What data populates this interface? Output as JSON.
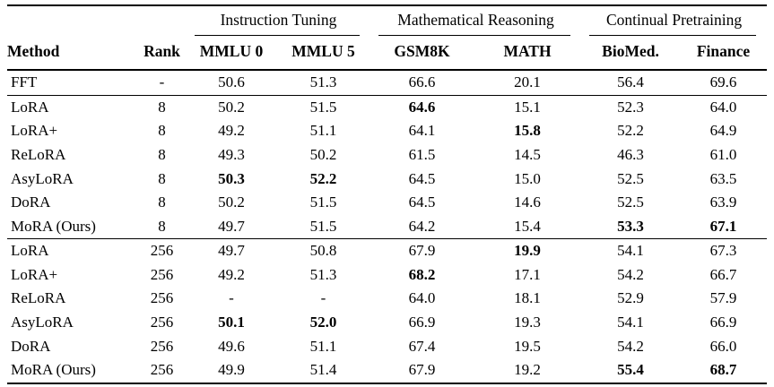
{
  "table": {
    "column_groups": [
      {
        "label": "Instruction Tuning"
      },
      {
        "label": "Mathematical Reasoning"
      },
      {
        "label": "Continual Pretraining"
      }
    ],
    "columns": [
      "Method",
      "Rank",
      "MMLU 0",
      "MMLU 5",
      "GSM8K",
      "MATH",
      "BioMed.",
      "Finance"
    ],
    "rows": [
      {
        "method": "FFT",
        "rank": "-",
        "section": "fft",
        "values": [
          "50.6",
          "51.3",
          "66.6",
          "20.1",
          "56.4",
          "69.6"
        ],
        "bold": [
          false,
          false,
          false,
          false,
          false,
          false
        ]
      },
      {
        "method": "LoRA",
        "rank": "8",
        "section": "rank-8",
        "values": [
          "50.2",
          "51.5",
          "64.6",
          "15.1",
          "52.3",
          "64.0"
        ],
        "bold": [
          false,
          false,
          true,
          false,
          false,
          false
        ]
      },
      {
        "method": "LoRA+",
        "rank": "8",
        "section": "rank-8",
        "values": [
          "49.2",
          "51.1",
          "64.1",
          "15.8",
          "52.2",
          "64.9"
        ],
        "bold": [
          false,
          false,
          false,
          true,
          false,
          false
        ]
      },
      {
        "method": "ReLoRA",
        "rank": "8",
        "section": "rank-8",
        "values": [
          "49.3",
          "50.2",
          "61.5",
          "14.5",
          "46.3",
          "61.0"
        ],
        "bold": [
          false,
          false,
          false,
          false,
          false,
          false
        ]
      },
      {
        "method": "AsyLoRA",
        "rank": "8",
        "section": "rank-8",
        "values": [
          "50.3",
          "52.2",
          "64.5",
          "15.0",
          "52.5",
          "63.5"
        ],
        "bold": [
          true,
          true,
          false,
          false,
          false,
          false
        ]
      },
      {
        "method": "DoRA",
        "rank": "8",
        "section": "rank-8",
        "values": [
          "50.2",
          "51.5",
          "64.5",
          "14.6",
          "52.5",
          "63.9"
        ],
        "bold": [
          false,
          false,
          false,
          false,
          false,
          false
        ]
      },
      {
        "method": "MoRA (Ours)",
        "rank": "8",
        "section": "rank-8",
        "values": [
          "49.7",
          "51.5",
          "64.2",
          "15.4",
          "53.3",
          "67.1"
        ],
        "bold": [
          false,
          false,
          false,
          false,
          true,
          true
        ]
      },
      {
        "method": "LoRA",
        "rank": "256",
        "section": "rank-256",
        "values": [
          "49.7",
          "50.8",
          "67.9",
          "19.9",
          "54.1",
          "67.3"
        ],
        "bold": [
          false,
          false,
          false,
          true,
          false,
          false
        ]
      },
      {
        "method": "LoRA+",
        "rank": "256",
        "section": "rank-256",
        "values": [
          "49.2",
          "51.3",
          "68.2",
          "17.1",
          "54.2",
          "66.7"
        ],
        "bold": [
          false,
          false,
          true,
          false,
          false,
          false
        ]
      },
      {
        "method": "ReLoRA",
        "rank": "256",
        "section": "rank-256",
        "values": [
          "-",
          "-",
          "64.0",
          "18.1",
          "52.9",
          "57.9"
        ],
        "bold": [
          false,
          false,
          false,
          false,
          false,
          false
        ]
      },
      {
        "method": "AsyLoRA",
        "rank": "256",
        "section": "rank-256",
        "values": [
          "50.1",
          "52.0",
          "66.9",
          "19.3",
          "54.1",
          "66.9"
        ],
        "bold": [
          true,
          true,
          false,
          false,
          false,
          false
        ]
      },
      {
        "method": "DoRA",
        "rank": "256",
        "section": "rank-256",
        "values": [
          "49.6",
          "51.1",
          "67.4",
          "19.5",
          "54.2",
          "66.0"
        ],
        "bold": [
          false,
          false,
          false,
          false,
          false,
          false
        ]
      },
      {
        "method": "MoRA (Ours)",
        "rank": "256",
        "section": "rank-256",
        "values": [
          "49.9",
          "51.4",
          "67.9",
          "19.2",
          "55.4",
          "68.7"
        ],
        "bold": [
          false,
          false,
          false,
          false,
          true,
          true
        ]
      }
    ]
  }
}
